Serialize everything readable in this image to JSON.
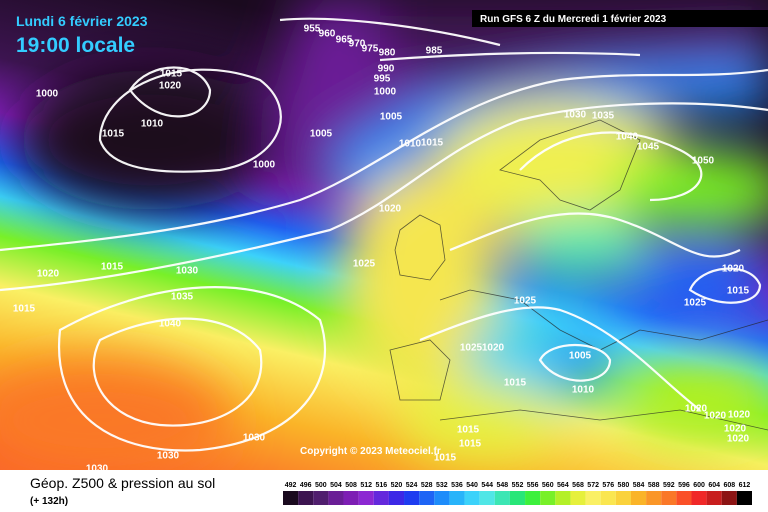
{
  "header": {
    "date": "Lundi 6 février 2023",
    "time": "19:00 locale",
    "run": "Run GFS 6 Z du Mercredi 1 février 2023"
  },
  "map": {
    "copyright": "Copyright © 2023 Meteociel.fr",
    "isobar_labels": [
      "955",
      "960",
      "965",
      "970",
      "975",
      "980",
      "985",
      "990",
      "995",
      "1000",
      "1000",
      "1015",
      "1020",
      "1010",
      "1015",
      "1005",
      "1005",
      "1010",
      "1015",
      "1000",
      "1030",
      "1035",
      "1040",
      "1045",
      "1050",
      "1020",
      "1025",
      "1015",
      "1030",
      "1020",
      "1015",
      "1035",
      "1040",
      "1020",
      "1015",
      "1025",
      "1025",
      "1025",
      "1020",
      "1005",
      "1015",
      "1010",
      "1020",
      "1020",
      "1020",
      "1020",
      "1020",
      "1015",
      "1015",
      "1015",
      "1030",
      "1030",
      "1030"
    ]
  },
  "legend": {
    "title": "Géop. Z500 & pression au sol",
    "lead": "(+ 132h)",
    "scale": {
      "labels": [
        "492",
        "496",
        "500",
        "504",
        "508",
        "512",
        "516",
        "520",
        "524",
        "528",
        "532",
        "536",
        "540",
        "544",
        "548",
        "552",
        "556",
        "560",
        "564",
        "568",
        "572",
        "576",
        "580",
        "584",
        "588",
        "592",
        "596",
        "600",
        "604",
        "608",
        "612"
      ],
      "colors": [
        "#1a0a1e",
        "#3c1450",
        "#501e6e",
        "#6a1e96",
        "#7d1eb4",
        "#8c28d2",
        "#6428dc",
        "#3c28e6",
        "#1e3cf0",
        "#1e64f5",
        "#1e8cfa",
        "#28b4fa",
        "#3cd2fa",
        "#50e6e6",
        "#3ce6b4",
        "#28e678",
        "#3cf03c",
        "#78f028",
        "#b4f028",
        "#e6f03c",
        "#faf064",
        "#fae650",
        "#fad23c",
        "#fab428",
        "#fa9628",
        "#fa7828",
        "#fa5028",
        "#f02828",
        "#c81e1e",
        "#8c1414",
        "#000000"
      ]
    }
  }
}
